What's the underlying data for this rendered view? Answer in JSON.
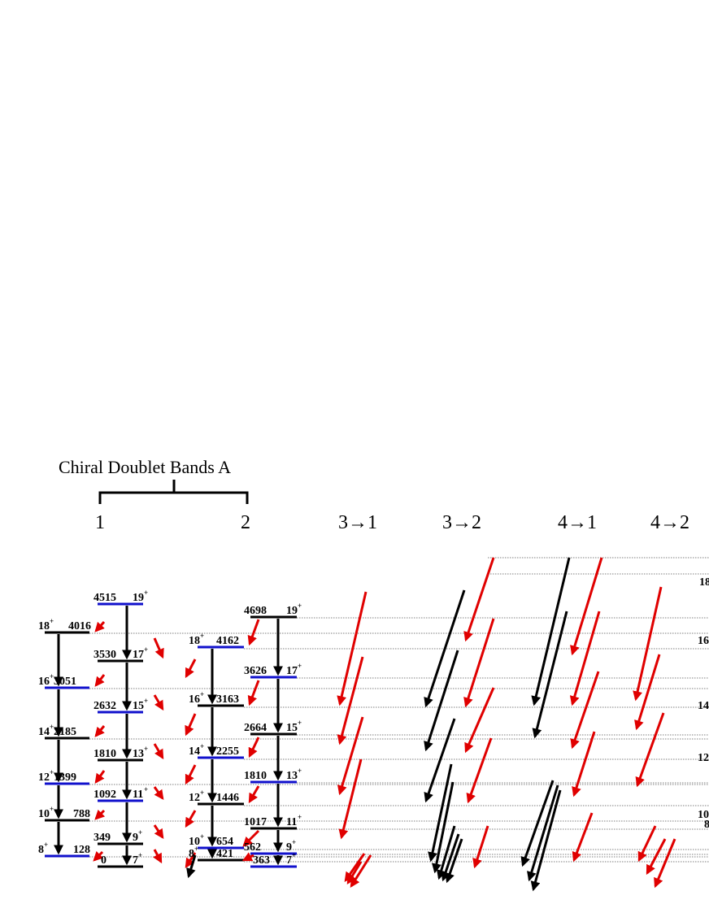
{
  "title": "Chiral Doublet Bands  A",
  "headers": [
    {
      "id": "band-1",
      "label": "1"
    },
    {
      "id": "band-2",
      "label": "2"
    },
    {
      "id": "trans-3-1",
      "label": "3→1"
    },
    {
      "id": "trans-3-2",
      "label": "3→2"
    },
    {
      "id": "trans-4-1",
      "label": "4→1"
    },
    {
      "id": "trans-4-2",
      "label": "4→2"
    }
  ],
  "colors": {
    "level_blue": "#1010cc",
    "level_black": "#000000",
    "arrow_red": "#e00000",
    "arrow_black": "#000000",
    "guide": "#555555"
  },
  "band1_energies": [
    "4016",
    "3051",
    "2185",
    "1399",
    "788",
    "128"
  ],
  "band1_spins": [
    "18",
    "16",
    "14",
    "12",
    "10",
    "8"
  ],
  "band1b_energies": [
    "4515",
    "3530",
    "2632",
    "1810",
    "1092",
    "349",
    "0"
  ],
  "band1b_spins": [
    "19",
    "17",
    "15",
    "13",
    "11",
    "9",
    "7"
  ],
  "band2_energies": [
    "4162",
    "3163",
    "2255",
    "1446",
    "654",
    "421"
  ],
  "band2_spins": [
    "18",
    "16",
    "14",
    "12",
    "10",
    "8"
  ],
  "band2b_energies": [
    "4698",
    "3626",
    "2664",
    "1810",
    "1017",
    "562",
    "363"
  ],
  "band2b_spins": [
    "19",
    "17",
    "15",
    "13",
    "11",
    "9",
    "7"
  ],
  "parity": "+",
  "right_edge_labels": [
    "18",
    "16",
    "14",
    "12",
    "10",
    "8"
  ]
}
